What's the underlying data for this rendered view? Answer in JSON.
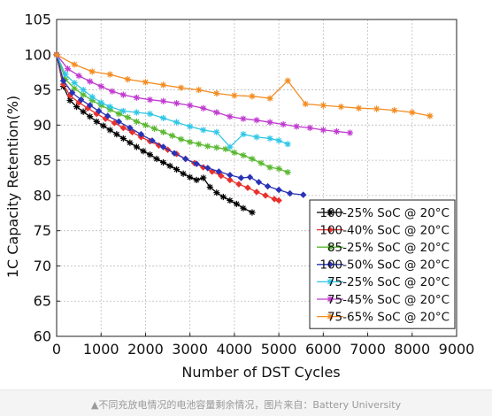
{
  "caption": "▲不同充放电情况的电池容量剩余情况，图片来自：Battery University",
  "chart_data": {
    "type": "line",
    "title": "",
    "xlabel": "Number of DST Cycles",
    "ylabel": "1C Capacity Retention(%)",
    "xlim": [
      0,
      9000
    ],
    "ylim": [
      60,
      105
    ],
    "xticks": [
      0,
      1000,
      2000,
      3000,
      4000,
      5000,
      6000,
      7000,
      8000,
      9000
    ],
    "yticks": [
      60,
      65,
      70,
      75,
      80,
      85,
      90,
      95,
      100,
      105
    ],
    "grid": true,
    "legend_position": "bottom-right",
    "series": [
      {
        "name": "100-25% SoC @ 20°C",
        "color": "#000000",
        "marker": "star",
        "x": [
          0,
          150,
          300,
          450,
          600,
          750,
          900,
          1050,
          1200,
          1350,
          1500,
          1650,
          1800,
          1950,
          2100,
          2250,
          2400,
          2550,
          2700,
          2850,
          3000,
          3150,
          3300,
          3450,
          3600,
          3750,
          3900,
          4050,
          4200,
          4400
        ],
        "y": [
          100,
          95.5,
          93.5,
          92.6,
          91.9,
          91.2,
          90.5,
          89.9,
          89.3,
          88.7,
          88.1,
          87.5,
          86.9,
          86.3,
          85.8,
          85.2,
          84.7,
          84.2,
          83.7,
          83.1,
          82.6,
          82.2,
          82.5,
          81.2,
          80.4,
          79.8,
          79.3,
          78.8,
          78.2,
          77.6
        ]
      },
      {
        "name": "100-40% SoC @ 20°C",
        "color": "#e8302c",
        "marker": "diamond",
        "x": [
          0,
          150,
          300,
          500,
          700,
          900,
          1100,
          1300,
          1500,
          1700,
          1900,
          2100,
          2300,
          2500,
          2700,
          2900,
          3100,
          3300,
          3500,
          3700,
          3900,
          4100,
          4300,
          4500,
          4700,
          4900,
          5000
        ],
        "y": [
          100,
          95.8,
          94.2,
          93.2,
          92.4,
          91.6,
          90.9,
          90.3,
          89.6,
          89.0,
          88.3,
          87.7,
          87.1,
          86.5,
          85.9,
          85.2,
          84.6,
          84.0,
          83.4,
          82.8,
          82.2,
          81.6,
          81.1,
          80.5,
          80.0,
          79.5,
          79.3
        ]
      },
      {
        "name": "85-25% SoC @ 20°C",
        "color": "#5ab830",
        "marker": "star",
        "x": [
          0,
          200,
          400,
          600,
          800,
          1000,
          1200,
          1400,
          1600,
          1800,
          2000,
          2200,
          2400,
          2600,
          2800,
          3000,
          3200,
          3400,
          3600,
          3800,
          4000,
          4200,
          4400,
          4600,
          4800,
          5000,
          5200
        ],
        "y": [
          100,
          96.5,
          95.2,
          94.3,
          93.5,
          92.8,
          92.2,
          91.6,
          91.1,
          90.5,
          90.0,
          89.5,
          89.0,
          88.5,
          88.0,
          87.6,
          87.3,
          87.0,
          86.8,
          86.6,
          86.1,
          85.7,
          85.2,
          84.6,
          84.0,
          83.8,
          83.3
        ]
      },
      {
        "name": "100-50% SoC @ 20°C",
        "color": "#2a33b5",
        "marker": "diamond",
        "x": [
          0,
          150,
          350,
          550,
          750,
          950,
          1150,
          1400,
          1650,
          1900,
          2150,
          2400,
          2650,
          2900,
          3150,
          3400,
          3650,
          3900,
          4150,
          4350,
          4550,
          4750,
          5000,
          5250,
          5550
        ],
        "y": [
          100,
          96.3,
          94.6,
          93.6,
          92.8,
          92.0,
          91.3,
          90.5,
          89.6,
          88.7,
          87.8,
          86.9,
          86.0,
          85.2,
          84.5,
          83.9,
          83.4,
          82.9,
          82.5,
          82.6,
          81.9,
          81.3,
          80.8,
          80.3,
          80.1
        ]
      },
      {
        "name": "75-25% SoC @ 20°C",
        "color": "#2ec7e6",
        "marker": "star",
        "x": [
          0,
          200,
          400,
          600,
          800,
          1000,
          1200,
          1500,
          1800,
          2100,
          2400,
          2700,
          3000,
          3300,
          3600,
          3900,
          4200,
          4500,
          4800,
          5000,
          5200
        ],
        "y": [
          100,
          97.2,
          96.0,
          95.0,
          94.0,
          93.2,
          92.6,
          92.0,
          91.8,
          91.6,
          91.0,
          90.4,
          89.8,
          89.3,
          89.0,
          86.9,
          88.7,
          88.3,
          88.1,
          87.8,
          87.3
        ]
      },
      {
        "name": "75-45% SoC @ 20°C",
        "color": "#c03ad0",
        "marker": "star",
        "x": [
          0,
          250,
          500,
          750,
          1000,
          1250,
          1500,
          1800,
          2100,
          2400,
          2700,
          3000,
          3300,
          3600,
          3900,
          4200,
          4500,
          4800,
          5100,
          5400,
          5700,
          6000,
          6300,
          6600
        ],
        "y": [
          100,
          98.0,
          97.0,
          96.2,
          95.5,
          94.8,
          94.3,
          93.9,
          93.6,
          93.4,
          93.1,
          92.8,
          92.4,
          91.8,
          91.2,
          90.9,
          90.7,
          90.4,
          90.1,
          89.8,
          89.6,
          89.3,
          89.1,
          88.9
        ]
      },
      {
        "name": "75-65% SoC @ 20°C",
        "color": "#f28c22",
        "marker": "star",
        "x": [
          0,
          400,
          800,
          1200,
          1600,
          2000,
          2400,
          2800,
          3200,
          3600,
          4000,
          4400,
          4800,
          5200,
          5600,
          6000,
          6400,
          6800,
          7200,
          7600,
          8000,
          8400
        ],
        "y": [
          100,
          98.6,
          97.6,
          97.2,
          96.5,
          96.1,
          95.7,
          95.3,
          95.0,
          94.5,
          94.2,
          94.1,
          93.8,
          96.3,
          93.0,
          92.8,
          92.6,
          92.4,
          92.3,
          92.1,
          91.8,
          91.3
        ]
      }
    ]
  }
}
